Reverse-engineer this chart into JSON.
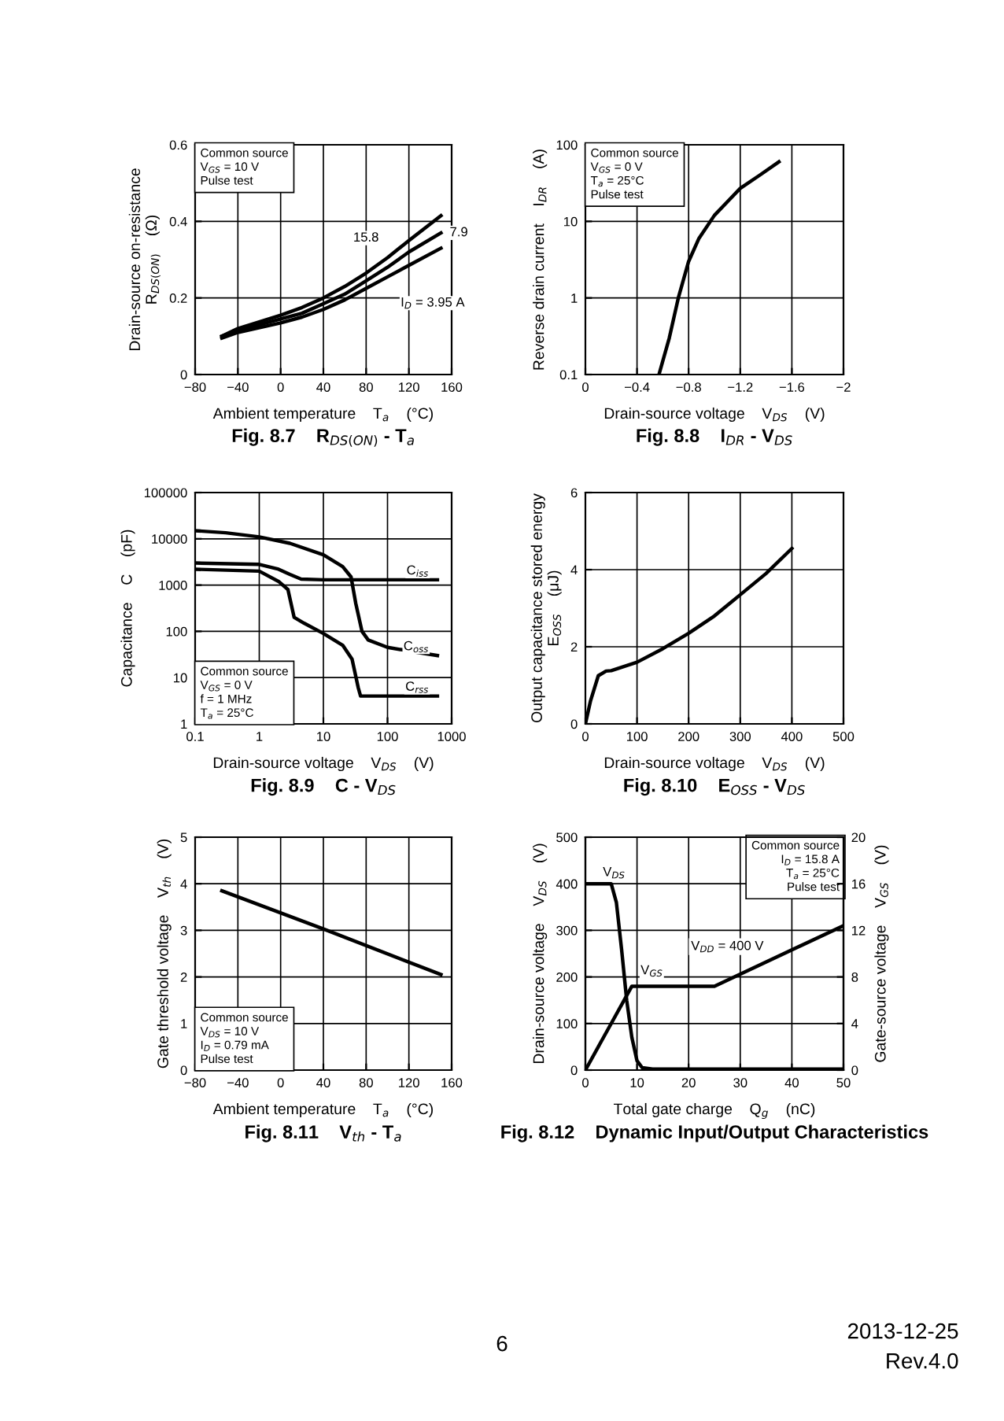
{
  "chart_data": [
    {
      "type": "line",
      "title": "Fig. 8.7    R$_{DS(ON)}$ - T$_{a}$",
      "xlabel": "Ambient temperature    T$_{a}$    (°C)",
      "ylabel": "Drain-source on-resistance\nR$_{DS(ON)}$    (Ω)",
      "xlim": [
        -80,
        160
      ],
      "ylim": [
        0,
        0.6
      ],
      "xticks": [
        {
          "value": -80,
          "label": "−80"
        },
        {
          "value": -40,
          "label": "−40"
        },
        0,
        40,
        80,
        120,
        160
      ],
      "yticks": [
        0,
        0.2,
        0.4,
        0.6
      ],
      "grid": true,
      "annotations": [
        "Common source\nV$_{GS}$ = 10 V\nPulse test"
      ],
      "series": [
        {
          "name": "I$_{D}$ = 3.95 A",
          "color": "#000000",
          "x": [
            -55,
            -40,
            0,
            20,
            40,
            60,
            80,
            100,
            120,
            150
          ],
          "values": [
            0.095,
            0.11,
            0.135,
            0.15,
            0.17,
            0.195,
            0.225,
            0.255,
            0.285,
            0.33
          ]
        },
        {
          "name": "7.9",
          "color": "#000000",
          "x": [
            -55,
            -40,
            0,
            20,
            40,
            60,
            80,
            100,
            120,
            150
          ],
          "values": [
            0.1,
            0.115,
            0.145,
            0.16,
            0.185,
            0.21,
            0.245,
            0.28,
            0.32,
            0.37
          ]
        },
        {
          "name": "15.8",
          "color": "#000000",
          "x": [
            -55,
            -40,
            0,
            20,
            40,
            60,
            80,
            100,
            120,
            150
          ],
          "values": [
            0.1,
            0.12,
            0.155,
            0.175,
            0.2,
            0.23,
            0.265,
            0.305,
            0.35,
            0.415
          ]
        }
      ]
    },
    {
      "type": "line",
      "title": "Fig. 8.8    I$_{DR}$ - V$_{DS}$",
      "xlabel": "Drain-source voltage    V$_{DS}$    (V)",
      "ylabel": "Reverse drain current    I$_{DR}$    (A)",
      "xlim": [
        0,
        -2
      ],
      "ylim": [
        0.1,
        100
      ],
      "log": "y",
      "xticks": [
        0,
        {
          "value": -0.4,
          "label": "−0.4"
        },
        {
          "value": -0.8,
          "label": "−0.8"
        },
        {
          "value": -1.2,
          "label": "−1.2"
        },
        {
          "value": -1.6,
          "label": "−1.6"
        },
        {
          "value": -2,
          "label": "−2"
        }
      ],
      "yticks": [
        0.1,
        1,
        10,
        100
      ],
      "grid": true,
      "annotations": [
        "Common source\nV$_{GS}$ = 0 V\nT$_{a}$ = 25°C\nPulse test"
      ],
      "series": [
        {
          "color": "#000000",
          "x": [
            -0.57,
            -0.65,
            -0.72,
            -0.8,
            -0.88,
            -1.0,
            -1.1,
            -1.2,
            -1.35,
            -1.5
          ],
          "values": [
            0.1,
            0.3,
            1,
            3,
            6,
            12,
            18,
            27,
            40,
            60
          ]
        }
      ]
    },
    {
      "type": "line",
      "title": "Fig. 8.9    C - V$_{DS}$",
      "xlabel": "Drain-source voltage    V$_{DS}$    (V)",
      "ylabel": "Capacitance    C    (pF)",
      "xlim": [
        0.1,
        1000
      ],
      "ylim": [
        1,
        100000
      ],
      "log": "xy",
      "xticks": [
        0.1,
        1,
        10,
        100,
        1000
      ],
      "yticks": [
        1,
        10,
        100,
        1000,
        10000,
        100000
      ],
      "grid": true,
      "annotations": [
        "Common source\nV$_{GS}$ = 0 V\nf = 1 MHz\nT$_{a}$ = 25°C"
      ],
      "series": [
        {
          "name": "C$_{iss}$",
          "color": "#000000",
          "x": [
            0.1,
            1,
            2,
            3,
            4.5,
            10,
            100,
            600
          ],
          "values": [
            3000,
            2800,
            2200,
            1700,
            1350,
            1300,
            1300,
            1300
          ]
        },
        {
          "name": "C$_{oss}$",
          "color": "#000000",
          "x": [
            0.1,
            0.3,
            1,
            3,
            10,
            20,
            27,
            32,
            40,
            50,
            100,
            300,
            600
          ],
          "values": [
            15000,
            13500,
            11000,
            8000,
            4500,
            2500,
            1500,
            400,
            100,
            65,
            45,
            35,
            30
          ]
        },
        {
          "name": "C$_{rss}$",
          "color": "#000000",
          "x": [
            0.1,
            1,
            2,
            2.8,
            3.5,
            5,
            10,
            20,
            28,
            35,
            38,
            600
          ],
          "values": [
            2200,
            2000,
            1200,
            800,
            200,
            150,
            90,
            50,
            25,
            6,
            4,
            4
          ]
        }
      ]
    },
    {
      "type": "line",
      "title": "Fig. 8.10    E$_{OSS}$ - V$_{DS}$",
      "xlabel": "Drain-source voltage    V$_{DS}$    (V)",
      "ylabel": "Output capacitance stored energy\nE$_{OSS}$    (μJ)",
      "xlim": [
        0,
        500
      ],
      "ylim": [
        0,
        6
      ],
      "xticks": [
        0,
        100,
        200,
        300,
        400,
        500
      ],
      "yticks": [
        0,
        2,
        4,
        6
      ],
      "grid": true,
      "series": [
        {
          "color": "#000000",
          "x": [
            0,
            10,
            25,
            40,
            50,
            100,
            150,
            200,
            250,
            300,
            350,
            400
          ],
          "values": [
            0,
            0.6,
            1.25,
            1.37,
            1.38,
            1.6,
            1.95,
            2.35,
            2.8,
            3.35,
            3.9,
            4.55
          ]
        }
      ]
    },
    {
      "type": "line",
      "title": "Fig. 8.11    V$_{th}$ - T$_{a}$",
      "xlabel": "Ambient temperature    T$_{a}$    (°C)",
      "ylabel": "Gate threshold voltage    V$_{th}$    (V)",
      "xlim": [
        -80,
        160
      ],
      "ylim": [
        0,
        5
      ],
      "xticks": [
        {
          "value": -80,
          "label": "−80"
        },
        {
          "value": -40,
          "label": "−40"
        },
        0,
        40,
        80,
        120,
        160
      ],
      "yticks": [
        0,
        1,
        2,
        3,
        4,
        5
      ],
      "grid": true,
      "annotations": [
        "Common source\nV$_{DS}$ = 10 V\nI$_{D}$ = 0.79 mA\nPulse test"
      ],
      "series": [
        {
          "color": "#000000",
          "x": [
            -55,
            40,
            150
          ],
          "values": [
            3.85,
            3.03,
            2.05
          ]
        }
      ]
    },
    {
      "type": "line",
      "title": "Fig. 8.12    Dynamic Input/Output Characteristics",
      "xlabel": "Total gate charge    Q$_{g}$    (nC)",
      "ylabel": "Drain-source voltage    V$_{DS}$    (V)",
      "y2label": "Gate-source voltage    V$_{GS}$    (V)",
      "xlim": [
        0,
        50
      ],
      "ylim": [
        0,
        500
      ],
      "y2lim": [
        0,
        20
      ],
      "xticks": [
        0,
        10,
        20,
        30,
        40,
        50
      ],
      "yticks": [
        0,
        100,
        200,
        300,
        400,
        500
      ],
      "y2ticks": [
        0,
        4,
        8,
        12,
        16,
        20
      ],
      "grid": true,
      "annotations": [
        "Common source\nI$_{D}$ = 15.8 A\nT$_{a}$ = 25°C\nPulse test",
        "V$_{DD}$ = 400 V",
        "6",
        "2013-12-25",
        "Rev.4.0"
      ],
      "series": [
        {
          "name": "V$_{DS}$",
          "color": "#000000",
          "x": [
            0,
            5,
            6,
            7,
            8,
            9,
            10,
            11,
            13,
            50
          ],
          "values": [
            400,
            400,
            360,
            260,
            150,
            70,
            20,
            5,
            2,
            2
          ]
        },
        {
          "name": "V$_{GS}$",
          "color": "#000000",
          "axis": "y2",
          "x": [
            0,
            9,
            25,
            50
          ],
          "values": [
            0,
            7.2,
            7.2,
            12.4
          ]
        }
      ]
    }
  ]
}
